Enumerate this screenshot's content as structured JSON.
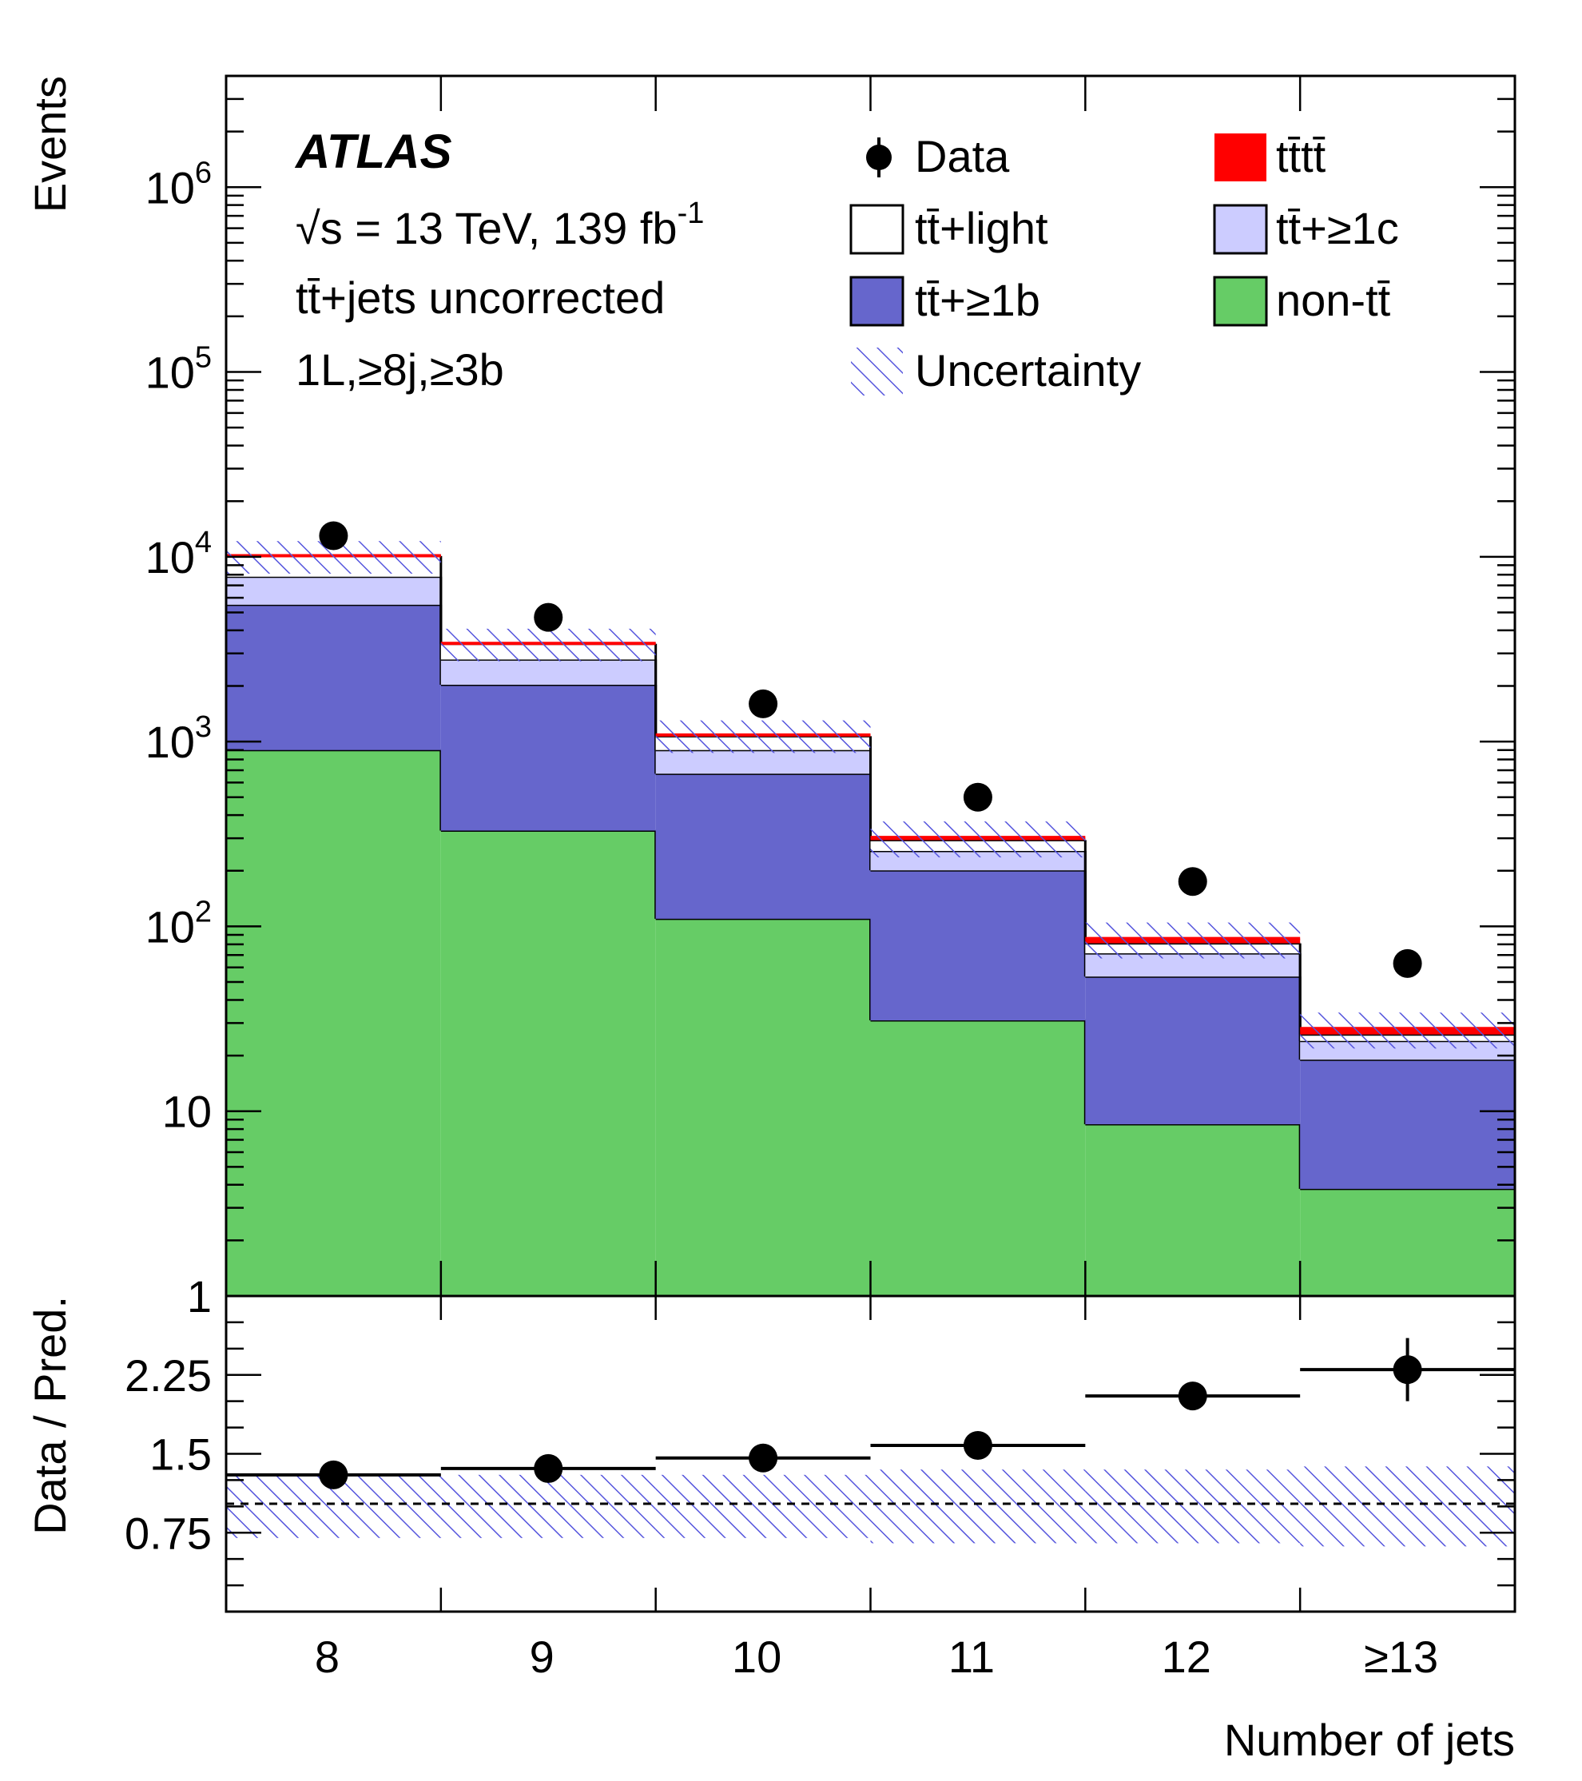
{
  "chart_data": {
    "type": "bar",
    "stacked": true,
    "experiment": "ATLAS",
    "annotations": [
      "√s = 13 TeV, 139 fb",
      "-1",
      "tt̄+jets uncorrected",
      "1L,≥8j,≥3b"
    ],
    "categories": [
      "8",
      "9",
      "10",
      "11",
      "12",
      "≥13"
    ],
    "xlabel": "Number of jets",
    "ylabel": "Events",
    "y_scale": "log",
    "ylim": [
      1,
      4000000
    ],
    "y_ticks": [
      {
        "value": 1,
        "label": "1",
        "sup": ""
      },
      {
        "value": 10,
        "label": "10",
        "sup": ""
      },
      {
        "value": 100,
        "label": "10",
        "sup": "2"
      },
      {
        "value": 1000,
        "label": "10",
        "sup": "3"
      },
      {
        "value": 10000,
        "label": "10",
        "sup": "4"
      },
      {
        "value": 100000,
        "label": "10",
        "sup": "5"
      },
      {
        "value": 1000000,
        "label": "10",
        "sup": "6"
      }
    ],
    "series": [
      {
        "name": "non-tt̄",
        "color": "#66cc66",
        "values": [
          900,
          330,
          110,
          31,
          8.5,
          3.8
        ]
      },
      {
        "name": "tt̄+≥1b",
        "color": "#6666cc",
        "values": [
          4600,
          1700,
          560,
          170,
          45,
          15.2
        ]
      },
      {
        "name": "tt̄+≥1c",
        "color": "#ccccff",
        "values": [
          2300,
          750,
          230,
          55,
          18,
          5
        ]
      },
      {
        "name": "tt̄+light",
        "color": "#ffffff",
        "values": [
          2300,
          600,
          170,
          37,
          9.5,
          2
        ]
      },
      {
        "name": "tt̄tt̄",
        "color": "#ff0000",
        "values": [
          30,
          20,
          15,
          10,
          5,
          2
        ]
      }
    ],
    "data": {
      "name": "Data",
      "values": [
        13000,
        4700,
        1600,
        500,
        175,
        63
      ]
    },
    "uncertainty": {
      "name": "Uncertainty",
      "relative": [
        0.2,
        0.2,
        0.2,
        0.22,
        0.22,
        0.22
      ]
    },
    "ratio": {
      "ylabel": "Data / Pred.",
      "ylim": [
        0,
        3
      ],
      "y_ticks": [
        "0.75",
        "1.5",
        "2.25"
      ],
      "values": [
        1.3,
        1.36,
        1.46,
        1.58,
        2.05,
        2.3
      ],
      "errors": [
        0.01,
        0.02,
        0.03,
        0.05,
        0.12,
        0.3
      ],
      "uncertainty_relative": [
        0.3,
        0.3,
        0.3,
        0.35,
        0.35,
        0.38
      ]
    },
    "legend": {
      "placement": "top-right",
      "labels": {
        "data": "Data",
        "tttt": "tt̄tt̄",
        "light": "tt̄+light",
        "c": "tt̄+≥1c",
        "b": "tt̄+≥1b",
        "nontt": "non-tt̄",
        "unc": "Uncertainty"
      }
    }
  }
}
